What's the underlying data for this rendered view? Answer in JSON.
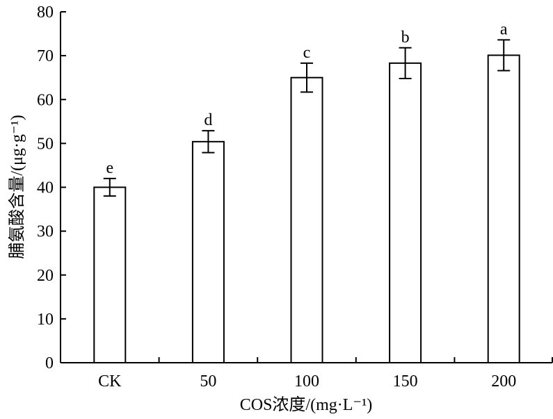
{
  "chart_data": {
    "type": "bar",
    "categories": [
      "CK",
      "50",
      "100",
      "150",
      "200"
    ],
    "values": [
      40.0,
      50.4,
      65.0,
      68.3,
      70.1
    ],
    "errors": [
      2.0,
      2.5,
      3.3,
      3.5,
      3.5
    ],
    "significance_labels": [
      "e",
      "d",
      "c",
      "b",
      "a"
    ],
    "xlabel": "COS浓度/(mg·L⁻¹)",
    "ylabel": "脯氨酸含量/(μg·g⁻¹)",
    "ylim": [
      0,
      80
    ],
    "yticks": [
      "0",
      "10",
      "20",
      "30",
      "40",
      "50",
      "60",
      "70",
      "80"
    ],
    "grid": false,
    "colors": {
      "bar_fill": "#ffffff",
      "bar_stroke": "#000000",
      "axis": "#000000"
    }
  }
}
